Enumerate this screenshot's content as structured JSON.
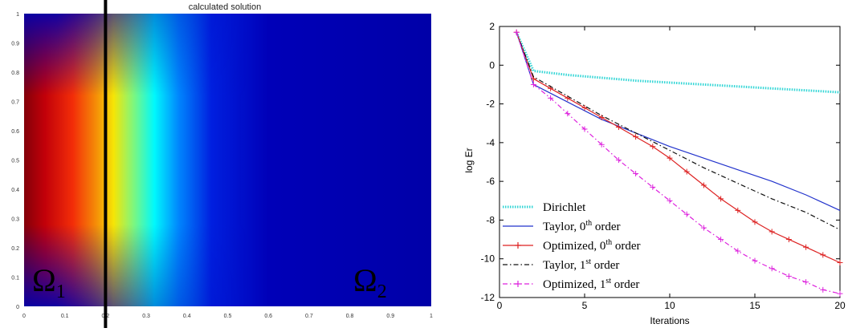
{
  "heatmap": {
    "title": "calculated solution",
    "x_ticks": [
      "0",
      "0.1",
      "0.2",
      "0.3",
      "0.4",
      "0.5",
      "0.6",
      "0.7",
      "0.8",
      "0.9",
      "1"
    ],
    "y_ticks": [
      "0",
      "0.1",
      "0.2",
      "0.3",
      "0.4",
      "0.5",
      "0.6",
      "0.7",
      "0.8",
      "0.9",
      "1"
    ],
    "interface_x": 0.2,
    "subdomain_labels": {
      "omega1_base": "Ω",
      "omega1_sub": "1",
      "omega2_base": "Ω",
      "omega2_sub": "2"
    },
    "colors": {
      "low": "#0000b0",
      "mid": "#00ffff",
      "high": "#ff0000",
      "peak": "#8b0000"
    }
  },
  "chart_data": {
    "type": "line",
    "xlabel": "Iterations",
    "ylabel": "log Er",
    "xlim": [
      0,
      20
    ],
    "ylim": [
      -12,
      2
    ],
    "x_ticks": [
      "0",
      "5",
      "10",
      "15",
      "20"
    ],
    "y_ticks": [
      "2",
      "0",
      "-2",
      "-4",
      "-6",
      "-8",
      "-10",
      "-12"
    ],
    "legend_position": "bottom-left",
    "series": [
      {
        "name": "Dirichlet",
        "style": "dotted",
        "color": "#33d6d6",
        "x": [
          1,
          2,
          4,
          6,
          8,
          10,
          12,
          14,
          16,
          18,
          20
        ],
        "y": [
          1.7,
          -0.3,
          -0.5,
          -0.65,
          -0.8,
          -0.9,
          -1.0,
          -1.1,
          -1.2,
          -1.3,
          -1.4
        ]
      },
      {
        "name": "Taylor, 0th order",
        "style": "solid",
        "color": "#2233cc",
        "x": [
          1,
          2,
          4,
          6,
          8,
          10,
          12,
          14,
          16,
          18,
          20
        ],
        "y": [
          1.7,
          -1.0,
          -1.9,
          -2.8,
          -3.5,
          -4.2,
          -4.8,
          -5.4,
          -6.0,
          -6.7,
          -7.5
        ]
      },
      {
        "name": "Optimized, 0th order",
        "style": "solid-plus",
        "color": "#dd2222",
        "x": [
          1,
          2,
          3,
          4,
          5,
          6,
          7,
          8,
          9,
          10,
          11,
          12,
          13,
          14,
          15,
          16,
          17,
          18,
          19,
          20
        ],
        "y": [
          1.7,
          -0.7,
          -1.2,
          -1.7,
          -2.2,
          -2.7,
          -3.2,
          -3.7,
          -4.2,
          -4.8,
          -5.5,
          -6.2,
          -6.9,
          -7.5,
          -8.1,
          -8.6,
          -9.0,
          -9.4,
          -9.8,
          -10.2
        ]
      },
      {
        "name": "Taylor, 1st order",
        "style": "dashdot",
        "color": "#111111",
        "x": [
          1,
          2,
          4,
          6,
          8,
          10,
          12,
          14,
          16,
          18,
          20
        ],
        "y": [
          1.7,
          -0.6,
          -1.6,
          -2.6,
          -3.5,
          -4.4,
          -5.3,
          -6.1,
          -6.9,
          -7.6,
          -8.5
        ]
      },
      {
        "name": "Optimized, 1st order",
        "style": "dashdot-plus",
        "color": "#dd22dd",
        "x": [
          1,
          2,
          3,
          4,
          5,
          6,
          7,
          8,
          9,
          10,
          11,
          12,
          13,
          14,
          15,
          16,
          17,
          18,
          19,
          20
        ],
        "y": [
          1.7,
          -1.0,
          -1.7,
          -2.5,
          -3.3,
          -4.1,
          -4.9,
          -5.6,
          -6.3,
          -7.0,
          -7.7,
          -8.4,
          -9.0,
          -9.6,
          -10.1,
          -10.5,
          -10.9,
          -11.2,
          -11.6,
          -11.8
        ]
      }
    ],
    "legend_entries": [
      {
        "base": "Dirichlet",
        "sup": "",
        "tail": ""
      },
      {
        "base": "Taylor, 0",
        "sup": "th",
        "tail": " order"
      },
      {
        "base": "Optimized, 0",
        "sup": "th",
        "tail": " order"
      },
      {
        "base": "Taylor, 1",
        "sup": "st",
        "tail": " order"
      },
      {
        "base": "Optimized, 1",
        "sup": "st",
        "tail": " order"
      }
    ]
  }
}
